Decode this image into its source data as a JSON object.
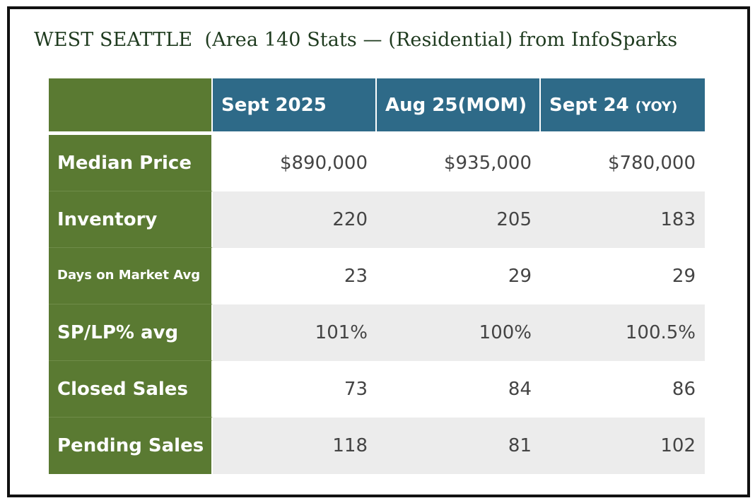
{
  "title": "WEST SEATTLE  (Area 140 Stats — (Residential) from InfoSparks",
  "table": {
    "columns": [
      {
        "label": "Sept 2025",
        "suffix": ""
      },
      {
        "label": "Aug 25(MOM)",
        "suffix": ""
      },
      {
        "label": "Sept 24 ",
        "suffix": "(YOY)"
      }
    ],
    "rows": [
      {
        "label": "Median Price",
        "values": [
          "$890,000",
          "$935,000",
          "$780,000"
        ]
      },
      {
        "label": "Inventory",
        "values": [
          "220",
          "205",
          "183"
        ]
      },
      {
        "label": "Days on Market Avg",
        "values": [
          "23",
          "29",
          "29"
        ]
      },
      {
        "label": "SP/LP% avg",
        "values": [
          "101%",
          "100%",
          "100.5%"
        ]
      },
      {
        "label": "Closed Sales",
        "values": [
          "73",
          "84",
          "86"
        ]
      },
      {
        "label": "Pending Sales",
        "values": [
          "118",
          "81",
          "102"
        ]
      }
    ]
  },
  "colors": {
    "row_header_green": "#5a7a32",
    "column_header_blue": "#2e6a88",
    "alt_row_gray": "#ececec",
    "title_text": "#1f3b1f"
  }
}
